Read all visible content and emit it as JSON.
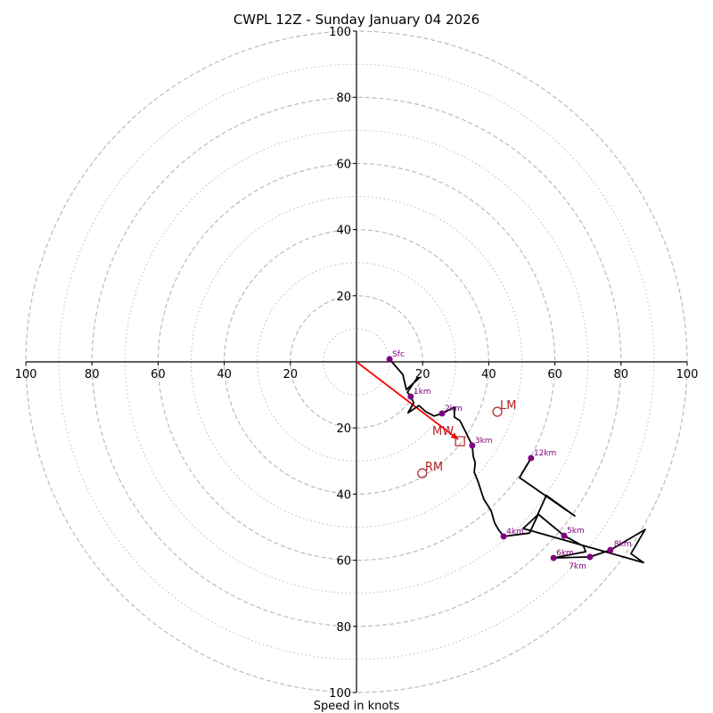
{
  "chart_data": {
    "type": "hodograph",
    "title": "CWPL 12Z - Sunday January 04 2026",
    "xlabel": "Speed in knots",
    "units": "knots",
    "rmax": 100,
    "major_rings": [
      20,
      40,
      60,
      80,
      100
    ],
    "minor_rings": [
      10,
      30,
      50,
      70,
      90
    ],
    "tick_labels": {
      "left": [
        "100",
        "80",
        "60",
        "40",
        "20"
      ],
      "right": [
        "20",
        "40",
        "60",
        "80",
        "100"
      ],
      "top": [
        "20",
        "40",
        "60",
        "80",
        "100"
      ],
      "bottom": [
        "20",
        "40",
        "60",
        "80",
        "100"
      ]
    },
    "tick_values": [
      20,
      40,
      60,
      80,
      100
    ],
    "trace": [
      [
        10.0,
        0.8
      ],
      [
        14.0,
        -3.8
      ],
      [
        15.1,
        -8.4
      ],
      [
        18.9,
        -4.9
      ],
      [
        18.3,
        -4.9
      ],
      [
        15.4,
        -9.2
      ],
      [
        16.4,
        -10.5
      ],
      [
        17.3,
        -12.4
      ],
      [
        15.6,
        -15.4
      ],
      [
        18.9,
        -13.2
      ],
      [
        21.0,
        -15.1
      ],
      [
        23.5,
        -16.4
      ],
      [
        25.9,
        -15.6
      ],
      [
        29.6,
        -13.7
      ],
      [
        29.6,
        -16.7
      ],
      [
        31.3,
        -17.8
      ],
      [
        32.9,
        -21.0
      ],
      [
        35.0,
        -25.3
      ],
      [
        35.3,
        -28.6
      ],
      [
        35.9,
        -30.5
      ],
      [
        35.6,
        -33.4
      ],
      [
        36.7,
        -36.1
      ],
      [
        38.5,
        -41.5
      ],
      [
        40.7,
        -45.0
      ],
      [
        41.8,
        -48.8
      ],
      [
        42.9,
        -50.7
      ],
      [
        44.5,
        -52.8
      ],
      [
        52.3,
        -51.8
      ],
      [
        55.0,
        -46.1
      ],
      [
        62.8,
        -52.6
      ],
      [
        68.7,
        -55.8
      ],
      [
        69.3,
        -57.4
      ],
      [
        59.6,
        -59.3
      ],
      [
        70.6,
        -59.0
      ],
      [
        76.8,
        -56.9
      ],
      [
        87.3,
        -50.7
      ],
      [
        83.0,
        -58.0
      ],
      [
        86.8,
        -60.7
      ],
      [
        50.4,
        -50.4
      ],
      [
        54.7,
        -46.4
      ],
      [
        57.4,
        -40.4
      ],
      [
        66.0,
        -46.6
      ],
      [
        49.3,
        -35.0
      ],
      [
        52.8,
        -29.1
      ]
    ],
    "height_markers": [
      {
        "label": "Sfc",
        "u": 10.0,
        "v": 0.8
      },
      {
        "label": "1km",
        "u": 16.4,
        "v": -10.5
      },
      {
        "label": "2km",
        "u": 25.9,
        "v": -15.6
      },
      {
        "label": "3km",
        "u": 35.0,
        "v": -25.3
      },
      {
        "label": "4km",
        "u": 44.5,
        "v": -52.8
      },
      {
        "label": "5km",
        "u": 62.8,
        "v": -52.6
      },
      {
        "label": "6km",
        "u": 59.6,
        "v": -59.3
      },
      {
        "label": "7km",
        "u": 70.6,
        "v": -59.0
      },
      {
        "label": "8km",
        "u": 76.8,
        "v": -56.9
      },
      {
        "label": "12km",
        "u": 52.8,
        "v": -29.1
      }
    ],
    "motion_markers": [
      {
        "label": "MW",
        "shape": "square",
        "u": 31.3,
        "v": -24.0
      },
      {
        "label": "LM",
        "shape": "circle",
        "u": 42.6,
        "v": -15.1
      },
      {
        "label": "RM",
        "shape": "circle",
        "u": 19.9,
        "v": -33.7
      }
    ],
    "mean_wind_vector": {
      "from": [
        0,
        0
      ],
      "to": [
        31.3,
        -24.0
      ]
    },
    "colors": {
      "trace": "#000000",
      "height_markers": "#800080",
      "motion_markers": "#b22222",
      "mean_wind_vector": "#ff0000",
      "grid": "#bbbbbb"
    }
  }
}
